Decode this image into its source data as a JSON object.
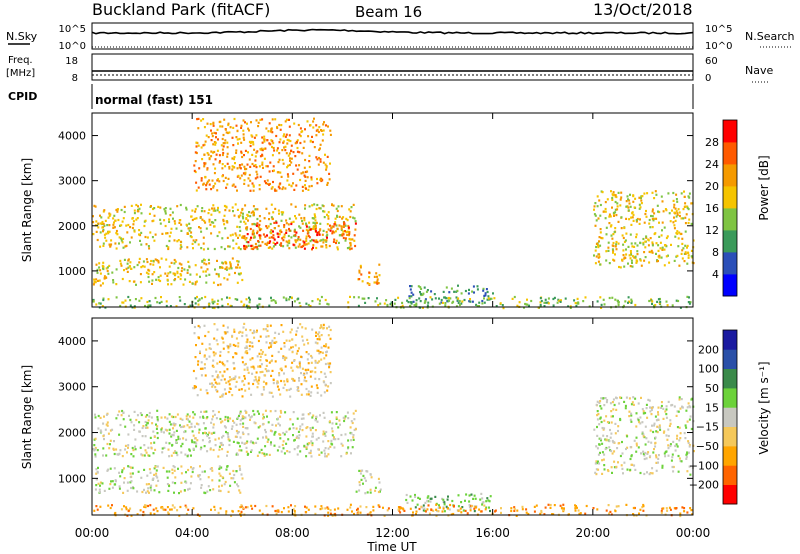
{
  "header": {
    "station": "Buckland Park (fitACF)",
    "beam": "Beam 16",
    "date": "13/Oct/2018"
  },
  "noise_panel": {
    "left_label": "N.Sky",
    "right_label": "N.Search",
    "left_ticks": [
      "10^5",
      "10^0"
    ],
    "right_ticks": [
      "10^5",
      "10^0"
    ]
  },
  "freq_panel": {
    "left_label_line1": "Freq.",
    "left_label_line2": "[MHz]",
    "right_label": "Nave",
    "left_ticks": [
      "18",
      "8"
    ],
    "right_ticks": [
      "60",
      "0"
    ]
  },
  "cpid_panel": {
    "label": "CPID",
    "value": "normal (fast) 151"
  },
  "colors": {
    "power": [
      "#0000ff",
      "#2b4fb8",
      "#3a9a5a",
      "#7fc442",
      "#f5c400",
      "#f59a00",
      "#ff5a00",
      "#ff0000"
    ],
    "velocity": [
      "#ff0000",
      "#ff6400",
      "#ffa500",
      "#f5c85a",
      "#c8c8c0",
      "#6cd23a",
      "#3a8a4a",
      "#2a50a8",
      "#1a1aa0"
    ]
  },
  "chart_data": [
    {
      "type": "heatmap",
      "quantity": "power",
      "ylabel": "Slant Range [km]",
      "colorbar_label": "Power [dB]",
      "colorbar_ticks": [
        "28",
        "24",
        "20",
        "16",
        "12",
        "8",
        "4"
      ],
      "y_ticks": [
        "4000",
        "3000",
        "2000",
        "1000"
      ],
      "ylim": [
        200,
        4500
      ],
      "xlim": [
        0,
        24
      ],
      "scatter_bands": [
        {
          "t0": 0.0,
          "t1": 6.0,
          "r0": 700,
          "r1": 1300,
          "level": 4
        },
        {
          "t0": 0.0,
          "t1": 10.5,
          "r0": 1500,
          "r1": 2500,
          "level": 4
        },
        {
          "t0": 6.0,
          "t1": 10.5,
          "r0": 1500,
          "r1": 2100,
          "level": 6
        },
        {
          "t0": 4.0,
          "t1": 9.5,
          "r0": 2800,
          "r1": 4400,
          "level": 5
        },
        {
          "t0": 10.5,
          "t1": 11.5,
          "r0": 700,
          "r1": 1200,
          "level": 5
        },
        {
          "t0": 12.5,
          "t1": 16.0,
          "r0": 300,
          "r1": 700,
          "level": 2
        },
        {
          "t0": 20.0,
          "t1": 24.0,
          "r0": 1100,
          "r1": 2800,
          "level": 4
        },
        {
          "t0": 0.0,
          "t1": 24.0,
          "r0": 200,
          "r1": 450,
          "level": 3
        }
      ]
    },
    {
      "type": "heatmap",
      "quantity": "velocity",
      "ylabel": "Slant Range [km]",
      "colorbar_label": "Velocity [m s⁻¹]",
      "colorbar_ticks": [
        "200",
        "100",
        "50",
        "15",
        "−15",
        "−50",
        "−100",
        "−200"
      ],
      "y_ticks": [
        "4000",
        "3000",
        "2000",
        "1000"
      ],
      "ylim": [
        200,
        4500
      ],
      "xlim": [
        0,
        24
      ],
      "xlabel": "Time UT",
      "x_ticks": [
        "00:00",
        "04:00",
        "08:00",
        "12:00",
        "16:00",
        "20:00",
        "00:00"
      ],
      "scatter_bands": [
        {
          "t0": 0.0,
          "t1": 6.0,
          "r0": 700,
          "r1": 1300,
          "level": 4
        },
        {
          "t0": 0.0,
          "t1": 10.5,
          "r0": 1500,
          "r1": 2500,
          "level": 4
        },
        {
          "t0": 4.0,
          "t1": 9.5,
          "r0": 2800,
          "r1": 4400,
          "level": 3
        },
        {
          "t0": 10.5,
          "t1": 11.5,
          "r0": 700,
          "r1": 1200,
          "level": 4
        },
        {
          "t0": 12.5,
          "t1": 16.0,
          "r0": 300,
          "r1": 700,
          "level": 5
        },
        {
          "t0": 20.0,
          "t1": 24.0,
          "r0": 1100,
          "r1": 2800,
          "level": 4
        },
        {
          "t0": 0.0,
          "t1": 24.0,
          "r0": 200,
          "r1": 450,
          "level": 2
        }
      ]
    }
  ]
}
